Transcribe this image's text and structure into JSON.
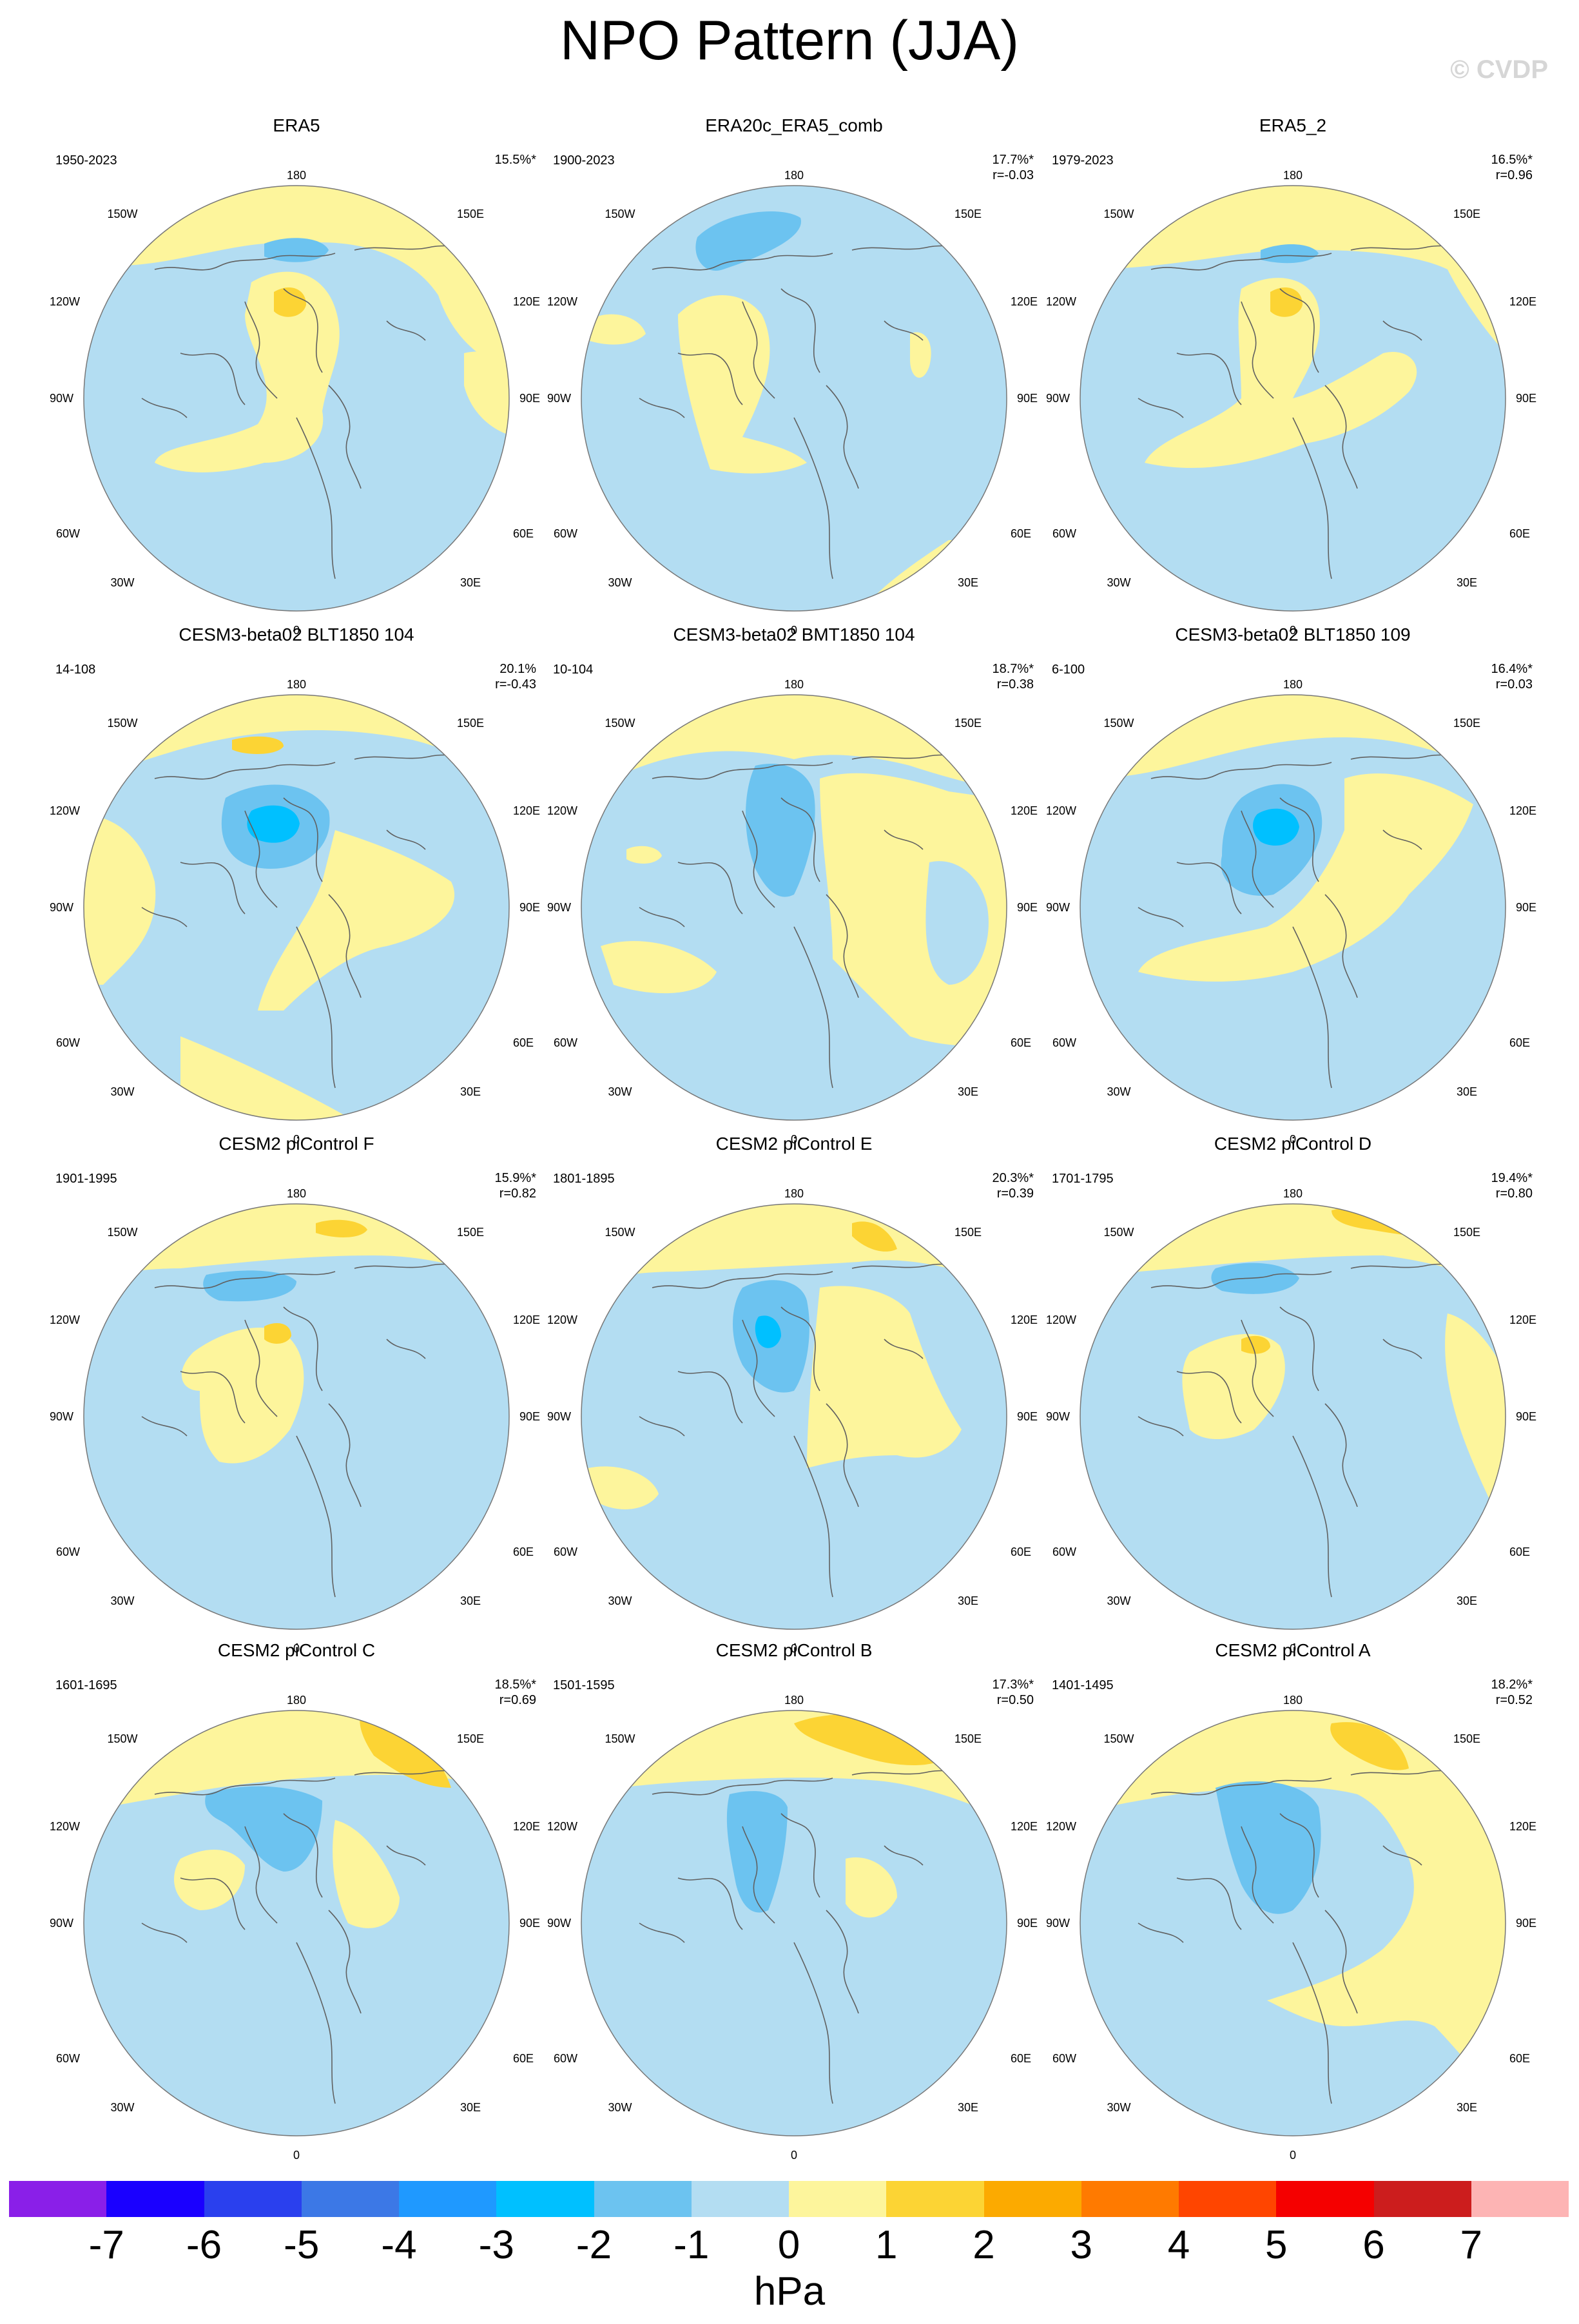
{
  "title": "NPO Pattern (JJA)",
  "watermark": "© CVDP",
  "colors": {
    "neg1": "#b3ddf2",
    "neg2": "#6cc3f0",
    "neg3": "#00c0ff",
    "pos1": "#fdf59c",
    "pos2": "#fcd434",
    "pos3": "#fcaa00",
    "coast": "#606060"
  },
  "longitude_labels": [
    "180",
    "150E",
    "120E",
    "90E",
    "60E",
    "30E",
    "0",
    "30W",
    "60W",
    "90W",
    "120W",
    "150W"
  ],
  "panels": [
    {
      "title": "ERA5",
      "years": "1950-2023",
      "pct": "15.5%*",
      "r": ""
    },
    {
      "title": "ERA20c_ERA5_comb",
      "years": "1900-2023",
      "pct": "17.7%*",
      "r": "r=-0.03"
    },
    {
      "title": "ERA5_2",
      "years": "1979-2023",
      "pct": "16.5%*",
      "r": "r=0.96"
    },
    {
      "title": "CESM3-beta02 BLT1850 104",
      "years": "14-108",
      "pct": "20.1%",
      "r": "r=-0.43"
    },
    {
      "title": "CESM3-beta02 BMT1850 104",
      "years": "10-104",
      "pct": "18.7%*",
      "r": "r=0.38"
    },
    {
      "title": "CESM3-beta02 BLT1850 109",
      "years": "6-100",
      "pct": "16.4%*",
      "r": "r=0.03"
    },
    {
      "title": "CESM2 piControl F",
      "years": "1901-1995",
      "pct": "15.9%*",
      "r": "r=0.82"
    },
    {
      "title": "CESM2 piControl E",
      "years": "1801-1895",
      "pct": "20.3%*",
      "r": "r=0.39"
    },
    {
      "title": "CESM2 piControl D",
      "years": "1701-1795",
      "pct": "19.4%*",
      "r": "r=0.80"
    },
    {
      "title": "CESM2 piControl C",
      "years": "1601-1695",
      "pct": "18.5%*",
      "r": "r=0.69"
    },
    {
      "title": "CESM2 piControl B",
      "years": "1501-1595",
      "pct": "17.3%*",
      "r": "r=0.50"
    },
    {
      "title": "CESM2 piControl A",
      "years": "1401-1495",
      "pct": "18.2%*",
      "r": "r=0.52"
    }
  ],
  "colorbar": {
    "colors": [
      "#8a1fe8",
      "#1a00ff",
      "#2a40ee",
      "#3c78e6",
      "#1f99ff",
      "#00c0ff",
      "#6cc3f0",
      "#b3ddf2",
      "#fdf59c",
      "#fcd434",
      "#fcaa00",
      "#ff7a00",
      "#ff4500",
      "#f50000",
      "#cc1d1d",
      "#fdb4b4"
    ],
    "ticks": [
      "-7",
      "-6",
      "-5",
      "-4",
      "-3",
      "-2",
      "-1",
      "0",
      "1",
      "2",
      "3",
      "4",
      "5",
      "6",
      "7"
    ],
    "units": "hPa"
  }
}
